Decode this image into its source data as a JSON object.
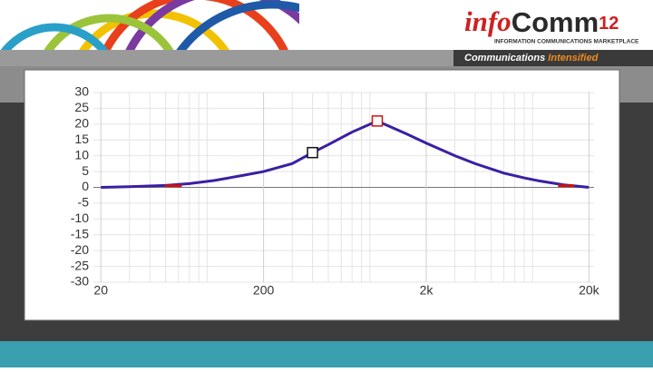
{
  "header": {
    "logo": [
      "info",
      "Comm",
      "12"
    ],
    "tagline": "INFORMATION COMMUNICATIONS MARKETPLACE",
    "slogan": [
      "Communications ",
      "Intensified"
    ]
  },
  "chart_data": {
    "type": "line",
    "log_x": true,
    "grid": true,
    "color": "#3b1fa3",
    "x": [
      20,
      30,
      50,
      70,
      100,
      150,
      200,
      300,
      400,
      500,
      700,
      1000,
      1500,
      2000,
      3000,
      4000,
      6000,
      8000,
      10000,
      14000,
      20000
    ],
    "values": [
      0,
      0.2,
      0.6,
      1.2,
      2.2,
      3.8,
      5,
      7.5,
      11,
      13.5,
      17.5,
      21,
      17,
      14,
      10,
      7.5,
      4.5,
      3,
      2,
      0.8,
      0
    ],
    "handles": {
      "x": [
        56,
        400,
        1000,
        14500
      ],
      "values": [
        0.5,
        11,
        21,
        0.5
      ],
      "colors": [
        "#d01010",
        "#111111",
        "#d01010",
        "#d01010"
      ],
      "shapes": [
        "dash",
        "square",
        "square",
        "dash"
      ]
    },
    "xlim": [
      18,
      21500
    ],
    "ylim": [
      -30,
      30
    ],
    "xticks": [
      20,
      200,
      {
        "value": 2000,
        "label": "2k"
      },
      {
        "value": 20000,
        "label": "20k"
      }
    ],
    "xminor": [
      30,
      40,
      50,
      60,
      70,
      80,
      90,
      300,
      400,
      500,
      600,
      700,
      800,
      900,
      3000,
      4000,
      5000,
      6000,
      7000,
      8000,
      9000
    ],
    "yticks": [
      30,
      25,
      20,
      15,
      10,
      5,
      0,
      -5,
      -10,
      -15,
      -20,
      -25,
      -30
    ]
  }
}
